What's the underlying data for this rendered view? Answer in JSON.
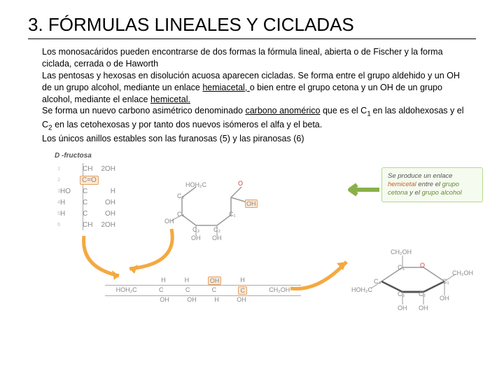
{
  "title": "3. FÓRMULAS LINEALES Y CICLADAS",
  "body": {
    "p1": "Los monosacáridos pueden encontrarse de dos formas la fórmula lineal, abierta o de Fischer y la forma ciclada, cerrada o de Haworth",
    "p2a": "Las pentosas y hexosas en disolución acuosa aparecen cicladas. Se forma entre el grupo aldehido  y un OH de un grupo alcohol, mediante un enlace ",
    "p2u1": "hemiacetal, ",
    "p2b": "o bien entre el grupo cetona y un OH de un grupo alcohol, mediante el enlace ",
    "p2u2": "hemicetal.",
    "p3a": "Se forma un nuevo carbono asimétrico denominado ",
    "p3u": "carbono anomérico",
    "p3b": " que es el C",
    "p3s1": "1 ",
    "p3c": "en las aldohexosas y el C",
    "p3s2": "2",
    "p3d": " en las cetohexosas y por tanto dos nuevos isómeros el alfa y el beta.",
    "p4": "Los únicos anillos estables son las furanosas (5) y las piranosas (6)"
  },
  "diagram": {
    "fructose_label": "D -fructosa",
    "fischer": {
      "rows": [
        {
          "n": "1",
          "l": "",
          "c": "CH",
          "r": "2OH",
          "ket": false
        },
        {
          "n": "2",
          "l": "",
          "c": "C",
          "r": "O",
          "ket": true
        },
        {
          "n": "3",
          "l": "HO",
          "c": "C",
          "r": "H",
          "ket": false
        },
        {
          "n": "4",
          "l": "H",
          "c": "C",
          "r": "OH",
          "ket": false
        },
        {
          "n": "5",
          "l": "H",
          "c": "C",
          "r": "OH",
          "ket": false
        },
        {
          "n": "6",
          "l": "",
          "c": "CH",
          "r": "2OH",
          "ket": false
        }
      ]
    },
    "openchain": {
      "top": [
        "H",
        "H",
        "OH",
        "H"
      ],
      "mid": [
        "HOH₂C",
        "C",
        "C",
        "C",
        "C",
        "CH₂OH"
      ],
      "bot": [
        "OH",
        "OH",
        "H",
        "OH"
      ],
      "hl_top_idx": 2,
      "hl_mid_idx": 4
    },
    "open_ring": {
      "top_left": "HOH₂C",
      "o": "O",
      "c1": "C₁",
      "c2": "C₂",
      "c3": "C₃",
      "c4": "C₄",
      "c5": "C₅",
      "oh_c2": "OH",
      "oh_c5": "OH"
    },
    "callout": {
      "pre": "Se produce un enlace ",
      "em1": "hemicetal",
      "mid": " entre el ",
      "em2a": "grupo cetona",
      "mid2": " y el ",
      "em2b": "grupo alcohol"
    },
    "piranose": {
      "ch2oh": "CH₂OH",
      "hoh2c": "HOH₂C",
      "o": "O",
      "oh": "OH",
      "c1": "C₁",
      "c2": "C₂",
      "c3": "C₃",
      "c4": "C₄",
      "c5": "C₅"
    },
    "colors": {
      "arrow": "#f4a940",
      "ring_o": "#c74440",
      "bond": "#999"
    }
  }
}
